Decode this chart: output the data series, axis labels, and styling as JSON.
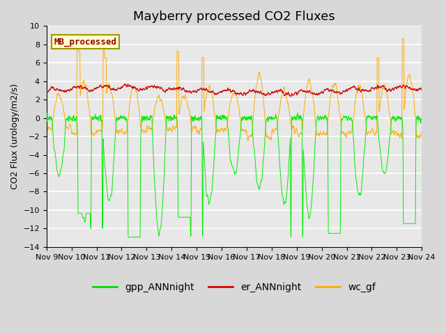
{
  "title": "Mayberry processed CO2 Fluxes",
  "ylabel": "CO2 Flux (urology/m2/s)",
  "ylim": [
    -14,
    10
  ],
  "yticks": [
    -14,
    -12,
    -10,
    -8,
    -6,
    -4,
    -2,
    0,
    2,
    4,
    6,
    8,
    10
  ],
  "xlim_days": [
    9,
    24
  ],
  "xtick_labels": [
    "Nov 9",
    "Nov 10",
    "Nov 11",
    "Nov 12",
    "Nov 13",
    "Nov 14",
    "Nov 15",
    "Nov 16",
    "Nov 17",
    "Nov 18",
    "Nov 19",
    "Nov 20",
    "Nov 21",
    "Nov 22",
    "Nov 23",
    "Nov 24"
  ],
  "legend_entries": [
    "gpp_ANNnight",
    "er_ANNnight",
    "wc_gf"
  ],
  "legend_colors": [
    "#00dd00",
    "#dd0000",
    "#ffaa00"
  ],
  "line_colors": {
    "gpp": "#00ee00",
    "er": "#cc0000",
    "wc": "#ffaa00"
  },
  "inset_label": "MB_processed",
  "inset_label_color": "#990000",
  "inset_box_facecolor": "#ffffcc",
  "inset_box_edgecolor": "#999900",
  "background_color": "#e8e8e8",
  "grid_color": "#ffffff",
  "title_fontsize": 13,
  "axis_fontsize": 9,
  "tick_fontsize": 8,
  "legend_fontsize": 10,
  "n_points": 2880,
  "seed": 7
}
